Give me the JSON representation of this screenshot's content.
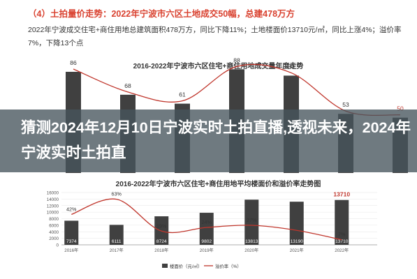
{
  "header": {
    "title": "（4）土拍量价走势：2022年宁波市六区土地成交50幅，总建478万方",
    "body": "2022年宁波成交住宅+商住用地总建筑面积478万方，同比下降11%；土地楼面价13710元/㎡，同比上涨4%；溢价率7%，下降13个点"
  },
  "banner": {
    "text": "猜测2024年12月10日宁波实时土拍直播,透视未来，2024年宁波实时土拍直"
  },
  "colors": {
    "bar": "#404040",
    "line": "#c0362c",
    "banner": "#46545c",
    "title_red": "#d9412f"
  },
  "chart_data": [
    {
      "type": "bar",
      "title": "2016-2022年宁波市六区住宅+商住用地成交量年度走势",
      "categories": [
        "2016",
        "2017",
        "2018",
        "2019",
        "2020",
        "2021",
        "2022"
      ],
      "series": [
        {
          "values": [
            86,
            68,
            61,
            88,
            83,
            53,
            50
          ],
          "labels": [
            "86",
            "68",
            "61",
            "88",
            "83",
            "53",
            "50"
          ]
        }
      ],
      "ylim": [
        0,
        100
      ],
      "highlight_last": true
    },
    {
      "type": "bar",
      "title": "2016-2022年宁波市六区住宅+商住用地平均楼面价和溢价率走势图",
      "categories": [
        "2016年",
        "2017年",
        "2018年",
        "2019年",
        "2020年",
        "2021年",
        "2022年"
      ],
      "y_ticks": [
        "0",
        "2000",
        "4000",
        "6000",
        "8000",
        "10000",
        "12000",
        "14000",
        "16000"
      ],
      "ylim": [
        0,
        16000
      ],
      "series": [
        {
          "name": "楼面价（元/㎡）",
          "type": "bar",
          "values": [
            7374,
            6111,
            8724,
            9802,
            13813,
            13190,
            13710
          ],
          "labels": [
            "7374",
            "6111",
            "8724",
            "9802",
            "13813",
            "13190",
            "13710"
          ]
        },
        {
          "name": "溢价率（%）",
          "type": "line",
          "values": [
            42,
            63,
            19,
            24,
            27,
            20,
            7
          ],
          "labels": [
            "42%",
            "63%",
            "19%",
            "24%",
            "27%",
            "",
            "7%"
          ]
        }
      ],
      "legend": "bottom-left"
    }
  ]
}
